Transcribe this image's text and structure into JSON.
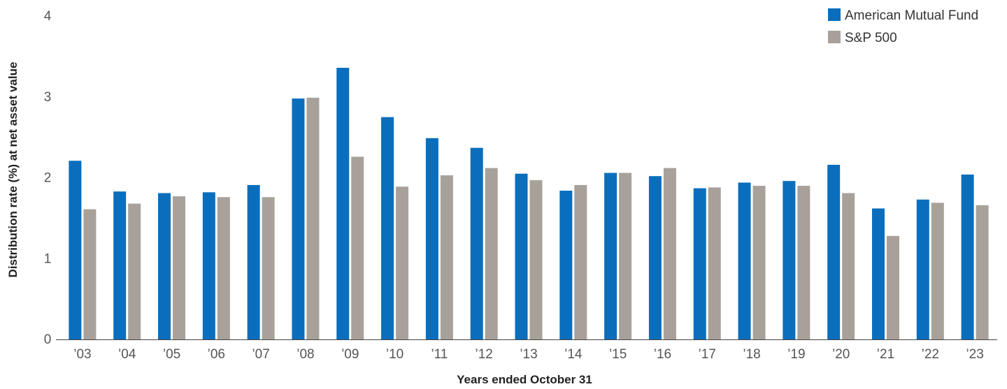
{
  "chart_data": {
    "type": "bar",
    "categories": [
      "'03",
      "'04",
      "'05",
      "'06",
      "'07",
      "'08",
      "'09",
      "'10",
      "'11",
      "'12",
      "'13",
      "'14",
      "'15",
      "'16",
      "'17",
      "'18",
      "'19",
      "'20",
      "'21",
      "'22",
      "'23"
    ],
    "series": [
      {
        "name": "American Mutual Fund",
        "color": "#0a6ebd",
        "values": [
          2.21,
          1.83,
          1.81,
          1.82,
          1.91,
          2.98,
          3.36,
          2.75,
          2.49,
          2.37,
          2.05,
          1.84,
          2.06,
          2.02,
          1.87,
          1.94,
          1.96,
          2.16,
          1.62,
          1.73,
          2.04
        ]
      },
      {
        "name": "S&P 500",
        "color": "#a7a19a",
        "values": [
          1.61,
          1.68,
          1.77,
          1.76,
          1.76,
          2.99,
          2.26,
          1.89,
          2.03,
          2.12,
          1.97,
          1.91,
          2.06,
          2.12,
          1.88,
          1.9,
          1.9,
          1.81,
          1.28,
          1.69,
          1.66
        ]
      }
    ],
    "xlabel": "Years ended October 31",
    "ylabel": "Distribution rate (%) at net asset value",
    "ylim": [
      0,
      4
    ],
    "yticks": [
      0,
      1,
      2,
      3,
      4
    ],
    "grid": false,
    "legend_position": "top-right"
  }
}
